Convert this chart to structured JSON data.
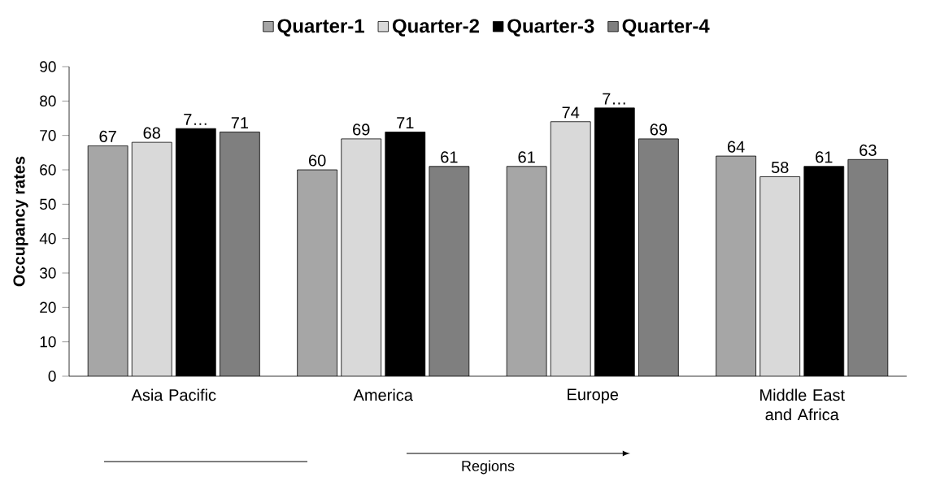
{
  "chart_data": {
    "type": "bar",
    "xlabel": "Regions",
    "ylabel": "Occupancy rates",
    "legend": "top",
    "categories": [
      "Asia Pacific",
      "America",
      "Europe",
      "Middle East and Africa"
    ],
    "ylim": [
      0,
      90
    ],
    "yticks": [
      0,
      10,
      20,
      30,
      40,
      50,
      60,
      70,
      80,
      90
    ],
    "series": [
      {
        "name": "Quarter-1",
        "color": "#a6a6a6",
        "values": [
          67,
          60,
          61,
          64
        ],
        "value_labels": [
          "67",
          "60",
          "61",
          "64"
        ]
      },
      {
        "name": "Quarter-2",
        "color": "#d9d9d9",
        "values": [
          68,
          69,
          74,
          58
        ],
        "value_labels": [
          "68",
          "69",
          "74",
          "58"
        ]
      },
      {
        "name": "Quarter-3",
        "color": "#000000",
        "values": [
          72,
          71,
          78,
          61
        ],
        "value_labels": [
          "7…",
          "71",
          "7…",
          "61"
        ]
      },
      {
        "name": "Quarter-4",
        "color": "#7f7f7f",
        "values": [
          71,
          61,
          69,
          63
        ],
        "value_labels": [
          "71",
          "61",
          "69",
          "63"
        ]
      }
    ]
  }
}
